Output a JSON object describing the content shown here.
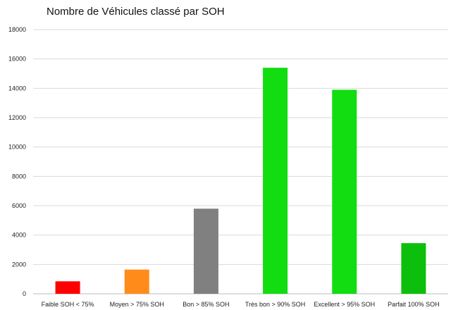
{
  "chart_data": {
    "type": "bar",
    "title": "Nombre de Véhicules classé par SOH",
    "xlabel": "",
    "ylabel": "",
    "ylim": [
      0,
      18000
    ],
    "yticks": [
      0,
      2000,
      4000,
      6000,
      8000,
      10000,
      12000,
      14000,
      16000,
      18000
    ],
    "grid": true,
    "legend": "none",
    "categories": [
      "Faible SOH < 75%",
      "Moyen > 75% SOH",
      "Bon > 85% SOH",
      "Très bon > 90% SOH",
      "Excellent > 95% SOH",
      "Parfait 100% SOH"
    ],
    "values": [
      850,
      1650,
      5800,
      15400,
      13900,
      3450
    ],
    "colors": [
      "#ff0000",
      "#ff8c1a",
      "#808080",
      "#11dd11",
      "#11dd11",
      "#0cbf0c"
    ]
  }
}
